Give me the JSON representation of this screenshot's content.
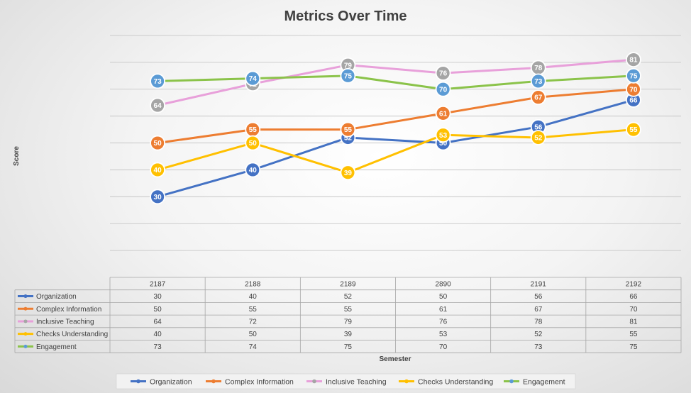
{
  "chart_data": {
    "type": "line",
    "title": "Metrics Over Time",
    "xlabel": "Semester",
    "ylabel": "Score",
    "categories": [
      "2187",
      "2188",
      "2189",
      "2890",
      "2191",
      "2192"
    ],
    "ylim": [
      0,
      90
    ],
    "grid": true,
    "legend_position": "bottom",
    "data_table": true,
    "series": [
      {
        "name": "Organization",
        "color": "#4472C4",
        "marker_fill": "#4472C4",
        "values": [
          30,
          40,
          52,
          50,
          56,
          66
        ]
      },
      {
        "name": "Complex Information",
        "color": "#ED7D31",
        "marker_fill": "#ED7D31",
        "values": [
          50,
          55,
          55,
          61,
          67,
          70
        ]
      },
      {
        "name": "Inclusive Teaching",
        "color": "#E8A0DA",
        "marker_fill": "#A5A5A5",
        "values": [
          64,
          72,
          79,
          76,
          78,
          81
        ]
      },
      {
        "name": "Checks Understanding",
        "color": "#FFC000",
        "marker_fill": "#FFC000",
        "values": [
          40,
          50,
          39,
          53,
          52,
          55
        ]
      },
      {
        "name": "Engagement",
        "color": "#8BC34A",
        "marker_fill": "#5B9BD5",
        "values": [
          73,
          74,
          75,
          70,
          73,
          75
        ]
      }
    ]
  }
}
